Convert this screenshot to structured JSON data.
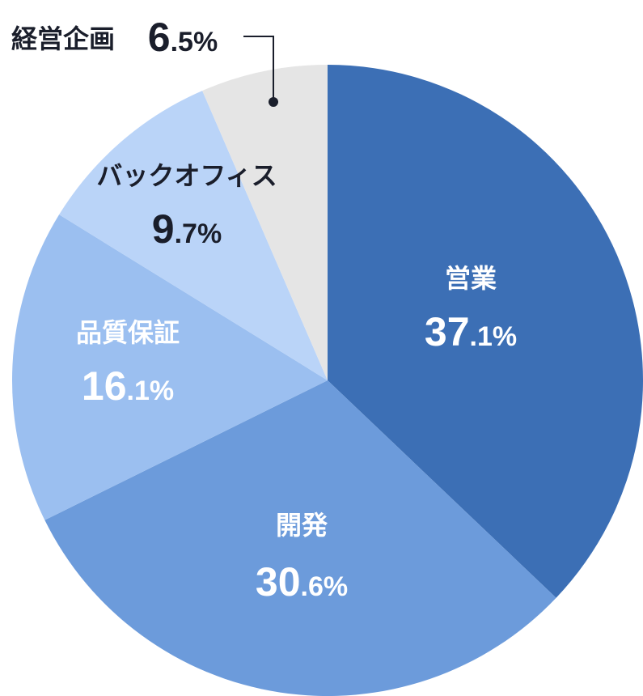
{
  "chart_data": {
    "type": "pie",
    "title": "",
    "start": "12 o'clock",
    "direction": "clockwise",
    "slices": [
      {
        "label": "営業",
        "value": 37.1,
        "value_int": "37",
        "value_dec": ".1%",
        "color": "#3c6fb5",
        "text_color": "#ffffff"
      },
      {
        "label": "開発",
        "value": 30.6,
        "value_int": "30",
        "value_dec": ".6%",
        "color": "#6c9bdb",
        "text_color": "#ffffff"
      },
      {
        "label": "品質保証",
        "value": 16.1,
        "value_int": "16",
        "value_dec": ".1%",
        "color": "#9bbff0",
        "text_color": "#ffffff"
      },
      {
        "label": "バックオフィス",
        "value": 9.7,
        "value_int": "9",
        "value_dec": ".7%",
        "color": "#bad4f8",
        "text_color": "#1a1e2b"
      },
      {
        "label": "経営企画",
        "value": 6.5,
        "value_int": "6",
        "value_dec": ".5%",
        "color": "#e5e5e5",
        "text_color": "#1a1e2b"
      }
    ],
    "callout_color": "#1a1e2b"
  }
}
